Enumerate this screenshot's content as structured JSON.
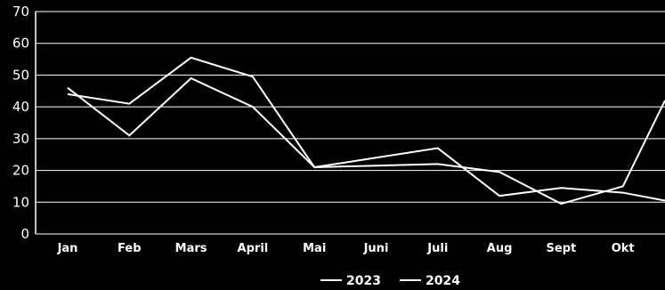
{
  "chart_data": {
    "type": "line",
    "title": "",
    "xlabel": "",
    "ylabel": "",
    "categories": [
      "Jan",
      "Feb",
      "Mars",
      "April",
      "Mai",
      "Juni",
      "Juli",
      "Aug",
      "Sept",
      "Okt"
    ],
    "ylim": [
      0,
      70
    ],
    "yticks": [
      0,
      10,
      20,
      30,
      40,
      50,
      60,
      70
    ],
    "grid": true,
    "legend_position": "bottom",
    "series": [
      {
        "name": "2023",
        "color": "#ffffff",
        "values": [
          46,
          31,
          49,
          40,
          21,
          21.5,
          22,
          19.5,
          9.5,
          15
        ],
        "extension": 42
      },
      {
        "name": "2024",
        "color": "#ffffff",
        "values": [
          44,
          41,
          55.5,
          49.5,
          21,
          24,
          27,
          12,
          14.5,
          13
        ],
        "extension": 10.5
      }
    ]
  }
}
